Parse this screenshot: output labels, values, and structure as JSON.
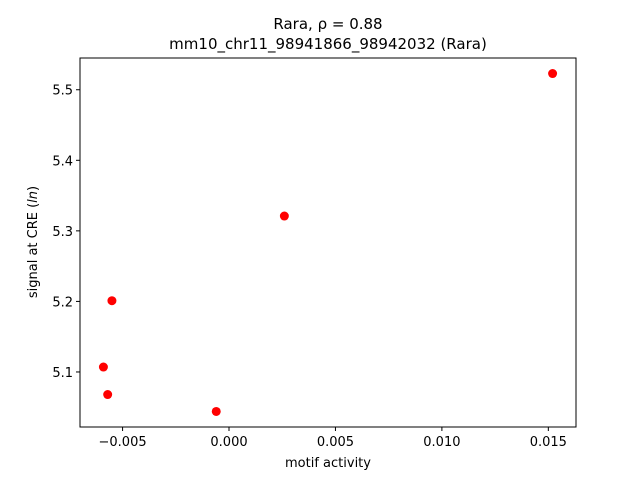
{
  "chart_data": {
    "type": "scatter",
    "title": "Rara, ρ = 0.88",
    "subtitle": "mm10_chr11_98941866_98942032 (Rara)",
    "xlabel": "motif activity",
    "ylabel_prefix": "signal at CRE (",
    "ylabel_italic": "ln",
    "ylabel_suffix": ")",
    "xlim": [
      -0.007,
      0.0163
    ],
    "ylim": [
      5.022,
      5.545
    ],
    "x_ticks": [
      -0.005,
      0.0,
      0.005,
      0.01,
      0.015
    ],
    "x_tick_labels": [
      "−0.005",
      "0.000",
      "0.005",
      "0.010",
      "0.015"
    ],
    "y_ticks": [
      5.1,
      5.2,
      5.3,
      5.4,
      5.5
    ],
    "y_tick_labels": [
      "5.1",
      "5.2",
      "5.3",
      "5.4",
      "5.5"
    ],
    "grid": false,
    "marker_color": "#ff0000",
    "points": [
      {
        "x": 0.0152,
        "y": 5.523
      },
      {
        "x": 0.0026,
        "y": 5.321
      },
      {
        "x": -0.0055,
        "y": 5.201
      },
      {
        "x": -0.0059,
        "y": 5.107
      },
      {
        "x": -0.0057,
        "y": 5.068
      },
      {
        "x": -0.0006,
        "y": 5.044
      }
    ]
  }
}
